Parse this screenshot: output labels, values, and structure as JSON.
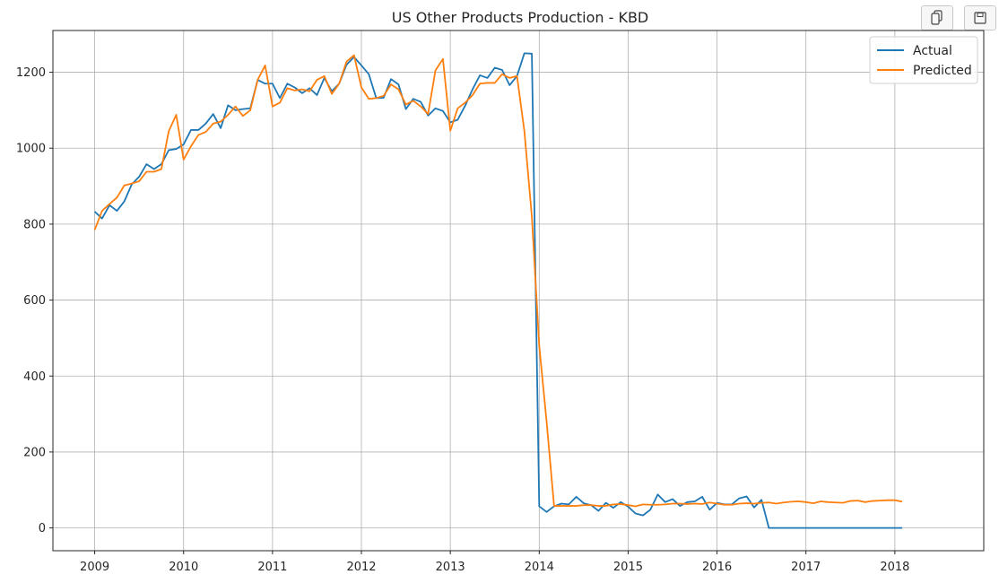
{
  "toolbar": {
    "copy_icon": "copy-icon",
    "save_icon": "save-icon"
  },
  "chart_data": {
    "type": "line",
    "title": "US Other Products Production - KBD",
    "xlabel": "",
    "ylabel": "",
    "x_ticks": [
      "2009",
      "2010",
      "2011",
      "2012",
      "2013",
      "2014",
      "2015",
      "2016",
      "2017",
      "2018"
    ],
    "y_ticks": [
      "0",
      "200",
      "400",
      "600",
      "800",
      "1000",
      "1200"
    ],
    "xlim": [
      2008.53,
      2019.0
    ],
    "ylim": [
      -60,
      1310
    ],
    "grid": true,
    "legend_position": "top-right",
    "series": [
      {
        "name": "Actual",
        "color": "#1f77b4",
        "points": [
          [
            2009.0,
            833
          ],
          [
            2009.083,
            815
          ],
          [
            2009.167,
            850
          ],
          [
            2009.25,
            835
          ],
          [
            2009.333,
            860
          ],
          [
            2009.417,
            905
          ],
          [
            2009.5,
            925
          ],
          [
            2009.583,
            958
          ],
          [
            2009.667,
            945
          ],
          [
            2009.75,
            958
          ],
          [
            2009.833,
            995
          ],
          [
            2009.917,
            998
          ],
          [
            2010.0,
            1010
          ],
          [
            2010.083,
            1048
          ],
          [
            2010.167,
            1048
          ],
          [
            2010.25,
            1065
          ],
          [
            2010.333,
            1090
          ],
          [
            2010.417,
            1053
          ],
          [
            2010.5,
            1113
          ],
          [
            2010.583,
            1100
          ],
          [
            2010.667,
            1103
          ],
          [
            2010.75,
            1105
          ],
          [
            2010.833,
            1180
          ],
          [
            2010.917,
            1170
          ],
          [
            2011.0,
            1170
          ],
          [
            2011.083,
            1132
          ],
          [
            2011.167,
            1170
          ],
          [
            2011.25,
            1160
          ],
          [
            2011.333,
            1145
          ],
          [
            2011.417,
            1158
          ],
          [
            2011.5,
            1140
          ],
          [
            2011.583,
            1185
          ],
          [
            2011.667,
            1150
          ],
          [
            2011.75,
            1170
          ],
          [
            2011.833,
            1220
          ],
          [
            2011.917,
            1240
          ],
          [
            2012.0,
            1218
          ],
          [
            2012.083,
            1195
          ],
          [
            2012.167,
            1132
          ],
          [
            2012.25,
            1133
          ],
          [
            2012.333,
            1182
          ],
          [
            2012.417,
            1168
          ],
          [
            2012.5,
            1103
          ],
          [
            2012.583,
            1130
          ],
          [
            2012.667,
            1122
          ],
          [
            2012.75,
            1086
          ],
          [
            2012.833,
            1105
          ],
          [
            2012.917,
            1098
          ],
          [
            2013.0,
            1068
          ],
          [
            2013.083,
            1075
          ],
          [
            2013.167,
            1112
          ],
          [
            2013.25,
            1155
          ],
          [
            2013.333,
            1192
          ],
          [
            2013.417,
            1185
          ],
          [
            2013.5,
            1212
          ],
          [
            2013.583,
            1206
          ],
          [
            2013.667,
            1166
          ],
          [
            2013.75,
            1190
          ],
          [
            2013.833,
            1250
          ],
          [
            2013.917,
            1249
          ],
          [
            2014.0,
            57
          ],
          [
            2014.083,
            42
          ],
          [
            2014.167,
            57
          ],
          [
            2014.25,
            64
          ],
          [
            2014.333,
            62
          ],
          [
            2014.417,
            82
          ],
          [
            2014.5,
            65
          ],
          [
            2014.583,
            60
          ],
          [
            2014.667,
            45
          ],
          [
            2014.75,
            66
          ],
          [
            2014.833,
            53
          ],
          [
            2014.917,
            68
          ],
          [
            2015.0,
            56
          ],
          [
            2015.083,
            38
          ],
          [
            2015.167,
            33
          ],
          [
            2015.25,
            48
          ],
          [
            2015.333,
            88
          ],
          [
            2015.417,
            68
          ],
          [
            2015.5,
            76
          ],
          [
            2015.583,
            58
          ],
          [
            2015.667,
            68
          ],
          [
            2015.75,
            70
          ],
          [
            2015.833,
            82
          ],
          [
            2015.917,
            48
          ],
          [
            2016.0,
            66
          ],
          [
            2016.083,
            62
          ],
          [
            2016.167,
            62
          ],
          [
            2016.25,
            78
          ],
          [
            2016.333,
            83
          ],
          [
            2016.417,
            54
          ],
          [
            2016.5,
            74
          ],
          [
            2016.583,
            0
          ],
          [
            2016.667,
            0
          ],
          [
            2016.75,
            0
          ],
          [
            2016.833,
            0
          ],
          [
            2016.917,
            0
          ],
          [
            2017.0,
            0
          ],
          [
            2017.083,
            0
          ],
          [
            2017.167,
            0
          ],
          [
            2017.25,
            0
          ],
          [
            2017.333,
            0
          ],
          [
            2017.417,
            0
          ],
          [
            2017.5,
            0
          ],
          [
            2017.583,
            0
          ],
          [
            2017.667,
            0
          ],
          [
            2017.75,
            0
          ],
          [
            2017.833,
            0
          ],
          [
            2017.917,
            0
          ],
          [
            2018.0,
            0
          ],
          [
            2018.083,
            0
          ]
        ]
      },
      {
        "name": "Predicted",
        "color": "#ff7f0e",
        "points": [
          [
            2009.0,
            785
          ],
          [
            2009.083,
            835
          ],
          [
            2009.167,
            853
          ],
          [
            2009.25,
            870
          ],
          [
            2009.333,
            902
          ],
          [
            2009.417,
            907
          ],
          [
            2009.5,
            913
          ],
          [
            2009.583,
            938
          ],
          [
            2009.667,
            938
          ],
          [
            2009.75,
            945
          ],
          [
            2009.833,
            1045
          ],
          [
            2009.917,
            1088
          ],
          [
            2010.0,
            970
          ],
          [
            2010.083,
            1005
          ],
          [
            2010.167,
            1035
          ],
          [
            2010.25,
            1043
          ],
          [
            2010.333,
            1065
          ],
          [
            2010.417,
            1070
          ],
          [
            2010.5,
            1088
          ],
          [
            2010.583,
            1110
          ],
          [
            2010.667,
            1085
          ],
          [
            2010.75,
            1100
          ],
          [
            2010.833,
            1180
          ],
          [
            2010.917,
            1218
          ],
          [
            2011.0,
            1110
          ],
          [
            2011.083,
            1120
          ],
          [
            2011.167,
            1158
          ],
          [
            2011.25,
            1152
          ],
          [
            2011.333,
            1155
          ],
          [
            2011.417,
            1150
          ],
          [
            2011.5,
            1180
          ],
          [
            2011.583,
            1190
          ],
          [
            2011.667,
            1143
          ],
          [
            2011.75,
            1170
          ],
          [
            2011.833,
            1228
          ],
          [
            2011.917,
            1245
          ],
          [
            2012.0,
            1160
          ],
          [
            2012.083,
            1130
          ],
          [
            2012.167,
            1132
          ],
          [
            2012.25,
            1138
          ],
          [
            2012.333,
            1168
          ],
          [
            2012.417,
            1155
          ],
          [
            2012.5,
            1115
          ],
          [
            2012.583,
            1125
          ],
          [
            2012.667,
            1110
          ],
          [
            2012.75,
            1090
          ],
          [
            2012.833,
            1205
          ],
          [
            2012.917,
            1235
          ],
          [
            2013.0,
            1046
          ],
          [
            2013.083,
            1105
          ],
          [
            2013.167,
            1120
          ],
          [
            2013.25,
            1140
          ],
          [
            2013.333,
            1170
          ],
          [
            2013.417,
            1172
          ],
          [
            2013.5,
            1172
          ],
          [
            2013.583,
            1195
          ],
          [
            2013.667,
            1185
          ],
          [
            2013.75,
            1190
          ],
          [
            2013.833,
            1045
          ],
          [
            2013.917,
            820
          ],
          [
            2014.0,
            480
          ],
          [
            2014.083,
            280
          ],
          [
            2014.167,
            58
          ],
          [
            2014.25,
            58
          ],
          [
            2014.333,
            58
          ],
          [
            2014.417,
            58
          ],
          [
            2014.5,
            60
          ],
          [
            2014.583,
            60
          ],
          [
            2014.667,
            58
          ],
          [
            2014.75,
            58
          ],
          [
            2014.833,
            62
          ],
          [
            2014.917,
            63
          ],
          [
            2015.0,
            60
          ],
          [
            2015.083,
            57
          ],
          [
            2015.167,
            62
          ],
          [
            2015.25,
            61
          ],
          [
            2015.333,
            61
          ],
          [
            2015.417,
            62
          ],
          [
            2015.5,
            64
          ],
          [
            2015.583,
            64
          ],
          [
            2015.667,
            63
          ],
          [
            2015.75,
            64
          ],
          [
            2015.833,
            63
          ],
          [
            2015.917,
            67
          ],
          [
            2016.0,
            64
          ],
          [
            2016.083,
            61
          ],
          [
            2016.167,
            61
          ],
          [
            2016.25,
            64
          ],
          [
            2016.333,
            65
          ],
          [
            2016.417,
            64
          ],
          [
            2016.5,
            66
          ],
          [
            2016.583,
            67
          ],
          [
            2016.667,
            64
          ],
          [
            2016.75,
            67
          ],
          [
            2016.833,
            69
          ],
          [
            2016.917,
            70
          ],
          [
            2017.0,
            68
          ],
          [
            2017.083,
            65
          ],
          [
            2017.167,
            70
          ],
          [
            2017.25,
            68
          ],
          [
            2017.333,
            67
          ],
          [
            2017.417,
            66
          ],
          [
            2017.5,
            71
          ],
          [
            2017.583,
            72
          ],
          [
            2017.667,
            68
          ],
          [
            2017.75,
            71
          ],
          [
            2017.833,
            72
          ],
          [
            2017.917,
            73
          ],
          [
            2018.0,
            73
          ],
          [
            2018.083,
            69
          ]
        ]
      }
    ]
  }
}
